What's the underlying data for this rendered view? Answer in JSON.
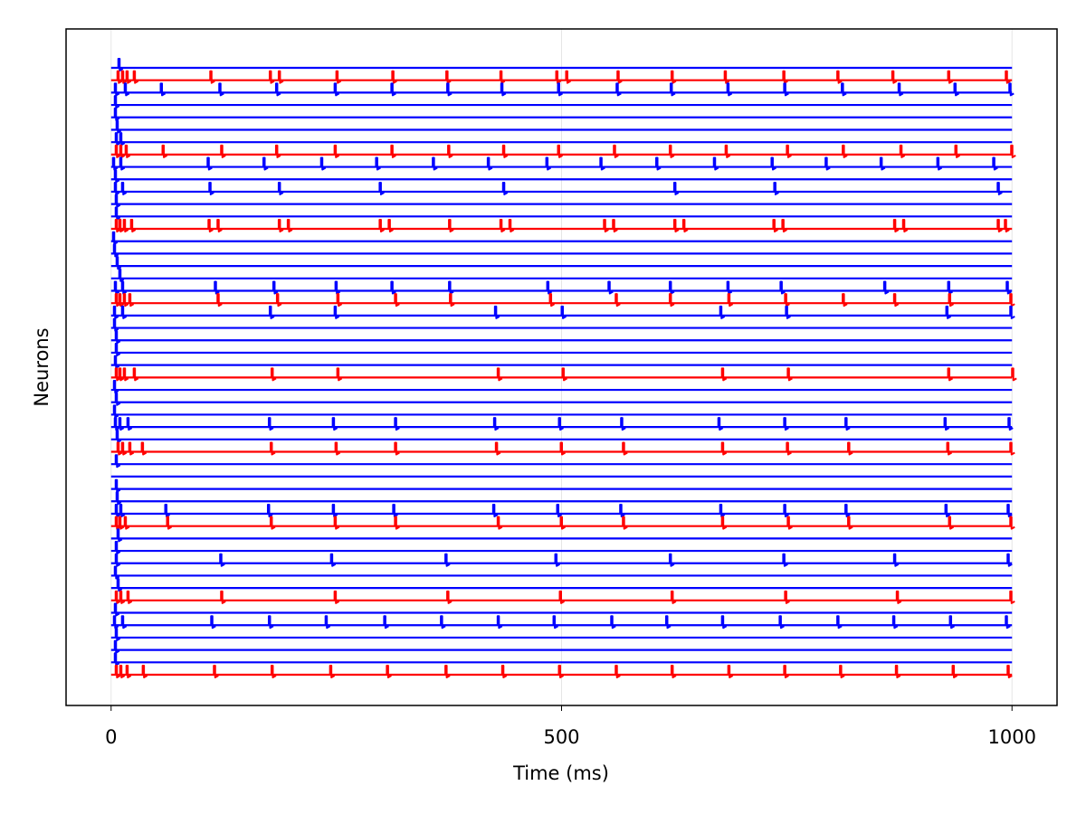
{
  "chart_data": {
    "type": "spike-trace",
    "xlabel": "Time (ms)",
    "ylabel": "Neurons",
    "xlim": [
      -50,
      1050
    ],
    "xticks": [
      0,
      500,
      1000
    ],
    "grid": true,
    "series": [
      {
        "color": "#0000ff",
        "spikes": [
          8
        ]
      },
      {
        "color": "#ff0000",
        "spikes": [
          7,
          12,
          17,
          25,
          110,
          176,
          186,
          250,
          312,
          372,
          432,
          494,
          505,
          562,
          622,
          681,
          746,
          806,
          867,
          929,
          993
        ]
      },
      {
        "color": "#0000ff",
        "spikes": [
          4,
          15,
          55,
          120,
          183,
          248,
          311,
          373,
          433,
          496,
          561,
          621,
          684,
          747,
          811,
          874,
          936,
          997
        ]
      },
      {
        "color": "#0000ff",
        "spikes": [
          4
        ]
      },
      {
        "color": "#0000ff",
        "spikes": [
          4
        ]
      },
      {
        "color": "#0000ff",
        "spikes": [
          6
        ]
      },
      {
        "color": "#0000ff",
        "spikes": [
          5,
          10
        ]
      },
      {
        "color": "#ff0000",
        "spikes": [
          5,
          10,
          16,
          57,
          122,
          183,
          248,
          311,
          374,
          435,
          496,
          558,
          620,
          682,
          750,
          812,
          876,
          937,
          999
        ]
      },
      {
        "color": "#0000ff",
        "spikes": [
          2,
          10,
          107,
          169,
          233,
          294,
          357,
          418,
          483,
          543,
          605,
          669,
          733,
          793,
          854,
          917,
          979
        ]
      },
      {
        "color": "#0000ff",
        "spikes": [
          4
        ]
      },
      {
        "color": "#0000ff",
        "spikes": [
          4,
          12,
          109,
          186,
          298,
          435,
          625,
          736,
          984
        ]
      },
      {
        "color": "#0000ff",
        "spikes": [
          5
        ]
      },
      {
        "color": "#0000ff",
        "spikes": [
          5
        ]
      },
      {
        "color": "#ff0000",
        "spikes": [
          5,
          9,
          14,
          22,
          108,
          118,
          186,
          196,
          298,
          308,
          375,
          432,
          442,
          547,
          557,
          625,
          635,
          735,
          745,
          869,
          879,
          984,
          992
        ]
      },
      {
        "color": "#0000ff",
        "spikes": [
          2
        ]
      },
      {
        "color": "#0000ff",
        "spikes": [
          3
        ]
      },
      {
        "color": "#0000ff",
        "spikes": [
          6
        ]
      },
      {
        "color": "#0000ff",
        "spikes": [
          9
        ]
      },
      {
        "color": "#0000ff",
        "spikes": [
          4,
          12,
          115,
          180,
          249,
          311,
          375,
          484,
          552,
          620,
          684,
          743,
          858,
          929,
          994
        ]
      },
      {
        "color": "#ff0000",
        "spikes": [
          5,
          9,
          14,
          20,
          118,
          184,
          251,
          315,
          376,
          487,
          560,
          620,
          685,
          748,
          812,
          869,
          930,
          998
        ]
      },
      {
        "color": "#0000ff",
        "spikes": [
          3,
          12,
          176,
          248,
          426,
          500,
          676,
          749,
          927,
          998
        ]
      },
      {
        "color": "#0000ff",
        "spikes": [
          3
        ]
      },
      {
        "color": "#0000ff",
        "spikes": [
          5
        ]
      },
      {
        "color": "#0000ff",
        "spikes": [
          5
        ]
      },
      {
        "color": "#0000ff",
        "spikes": [
          4
        ]
      },
      {
        "color": "#ff0000",
        "spikes": [
          5,
          9,
          14,
          25,
          178,
          251,
          429,
          501,
          678,
          751,
          929,
          1000
        ]
      },
      {
        "color": "#0000ff",
        "spikes": [
          3
        ]
      },
      {
        "color": "#0000ff",
        "spikes": [
          5
        ]
      },
      {
        "color": "#0000ff",
        "spikes": [
          3
        ]
      },
      {
        "color": "#0000ff",
        "spikes": [
          4,
          9,
          18,
          175,
          246,
          315,
          425,
          497,
          566,
          674,
          747,
          815,
          925,
          996
        ]
      },
      {
        "color": "#0000ff",
        "spikes": [
          6
        ]
      },
      {
        "color": "#ff0000",
        "spikes": [
          7,
          12,
          20,
          34,
          177,
          249,
          315,
          427,
          499,
          568,
          678,
          750,
          818,
          928,
          998
        ]
      },
      {
        "color": "#0000ff",
        "spikes": [
          5
        ]
      },
      {
        "color": "#0000ff",
        "spikes": []
      },
      {
        "color": "#0000ff",
        "spikes": [
          5
        ]
      },
      {
        "color": "#0000ff",
        "spikes": [
          6
        ]
      },
      {
        "color": "#0000ff",
        "spikes": [
          5,
          10,
          60,
          174,
          246,
          313,
          424,
          495,
          565,
          676,
          747,
          815,
          926,
          995
        ]
      },
      {
        "color": "#ff0000",
        "spikes": [
          5,
          9,
          15,
          62,
          177,
          248,
          315,
          429,
          499,
          568,
          678,
          751,
          818,
          930,
          998
        ]
      },
      {
        "color": "#0000ff",
        "spikes": [
          7
        ]
      },
      {
        "color": "#0000ff",
        "spikes": [
          5
        ]
      },
      {
        "color": "#0000ff",
        "spikes": [
          5,
          121,
          244,
          371,
          493,
          620,
          746,
          869,
          995
        ]
      },
      {
        "color": "#0000ff",
        "spikes": [
          4
        ]
      },
      {
        "color": "#0000ff",
        "spikes": [
          7
        ]
      },
      {
        "color": "#ff0000",
        "spikes": [
          5,
          10,
          18,
          122,
          248,
          373,
          498,
          622,
          748,
          872,
          998
        ]
      },
      {
        "color": "#0000ff",
        "spikes": [
          4
        ]
      },
      {
        "color": "#0000ff",
        "spikes": [
          3,
          12,
          111,
          175,
          238,
          303,
          366,
          429,
          491,
          555,
          616,
          678,
          742,
          806,
          868,
          931,
          993
        ]
      },
      {
        "color": "#0000ff",
        "spikes": [
          5
        ]
      },
      {
        "color": "#0000ff",
        "spikes": [
          4
        ]
      },
      {
        "color": "#0000ff",
        "spikes": [
          4
        ]
      },
      {
        "color": "#ff0000",
        "spikes": [
          5,
          10,
          17,
          35,
          114,
          178,
          243,
          306,
          371,
          434,
          497,
          560,
          622,
          685,
          747,
          809,
          871,
          934,
          995
        ]
      }
    ]
  }
}
